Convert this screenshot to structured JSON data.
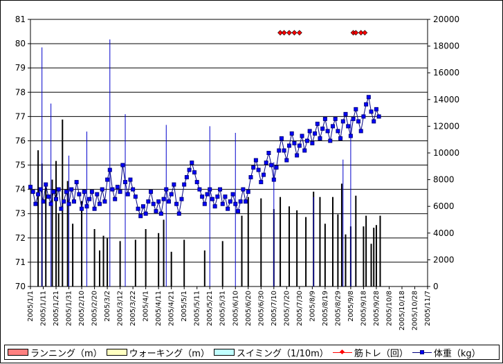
{
  "chart_data": {
    "type": "line",
    "title": "",
    "xlabel": "",
    "ylabel": "",
    "ylim": [
      70,
      81
    ],
    "y2lim": [
      0,
      20000
    ],
    "y_ticks": [
      "70",
      "71",
      "72",
      "73",
      "74",
      "75",
      "76",
      "77",
      "78",
      "79",
      "80",
      "81"
    ],
    "y2_ticks": [
      "0",
      "2000",
      "4000",
      "6000",
      "8000",
      "10000",
      "12000",
      "14000",
      "16000",
      "18000",
      "20000"
    ],
    "x_tick_labels": [
      "2005/1/1",
      "2005/1/11",
      "2005/1/21",
      "2005/1/31",
      "2005/2/10",
      "2005/2/20",
      "2005/3/2",
      "2005/3/12",
      "2005/3/22",
      "2005/4/1",
      "2005/4/11",
      "2005/4/21",
      "2005/5/1",
      "2005/5/11",
      "2005/5/21",
      "2005/5/31",
      "2005/6/10",
      "2005/6/20",
      "2005/6/30",
      "2005/7/10",
      "2005/7/20",
      "2005/7/30",
      "2005/8/9",
      "2005/8/19",
      "2005/8/29",
      "2005/9/8",
      "2005/9/18",
      "2005/9/28",
      "2005/10/8",
      "2005/10/18",
      "2005/10/28",
      "2005/11/7"
    ],
    "grid": true,
    "legend_position": "bottom",
    "colors": {
      "running": "#ff8080",
      "walking": "#ffffc0",
      "swimming": "#c0ffff",
      "strength": "#ff0000",
      "weight": "#000080",
      "weight_marker": "#0000ff"
    },
    "series": [
      {
        "name": "体重（kg）",
        "axis": "left",
        "kind": "line",
        "points": [
          [
            0,
            74.1
          ],
          [
            2,
            73.9
          ],
          [
            4,
            73.4
          ],
          [
            6,
            73.8
          ],
          [
            8,
            74.0
          ],
          [
            10,
            73.5
          ],
          [
            12,
            74.2
          ],
          [
            14,
            73.7
          ],
          [
            16,
            73.4
          ],
          [
            18,
            73.9
          ],
          [
            20,
            73.6
          ],
          [
            22,
            74.0
          ],
          [
            24,
            73.2
          ],
          [
            26,
            73.5
          ],
          [
            28,
            73.9
          ],
          [
            30,
            73.4
          ],
          [
            32,
            74.0
          ],
          [
            34,
            73.5
          ],
          [
            36,
            74.3
          ],
          [
            38,
            73.8
          ],
          [
            40,
            73.2
          ],
          [
            42,
            73.9
          ],
          [
            44,
            73.3
          ],
          [
            46,
            73.6
          ],
          [
            48,
            73.9
          ],
          [
            50,
            73.2
          ],
          [
            52,
            73.8
          ],
          [
            54,
            73.4
          ],
          [
            56,
            74.0
          ],
          [
            58,
            73.5
          ],
          [
            60,
            74.4
          ],
          [
            62,
            74.8
          ],
          [
            64,
            74.0
          ],
          [
            66,
            73.6
          ],
          [
            68,
            74.1
          ],
          [
            70,
            73.9
          ],
          [
            72,
            75.0
          ],
          [
            74,
            74.3
          ],
          [
            76,
            73.8
          ],
          [
            78,
            74.4
          ],
          [
            80,
            74.0
          ],
          [
            82,
            73.7
          ],
          [
            84,
            73.2
          ],
          [
            86,
            72.9
          ],
          [
            88,
            73.3
          ],
          [
            90,
            73.0
          ],
          [
            92,
            73.5
          ],
          [
            94,
            73.9
          ],
          [
            96,
            73.4
          ],
          [
            98,
            73.1
          ],
          [
            100,
            73.5
          ],
          [
            102,
            73.0
          ],
          [
            104,
            73.6
          ],
          [
            106,
            74.0
          ],
          [
            108,
            73.5
          ],
          [
            110,
            73.8
          ],
          [
            112,
            74.2
          ],
          [
            114,
            73.4
          ],
          [
            116,
            73.0
          ],
          [
            118,
            73.6
          ],
          [
            120,
            74.2
          ],
          [
            122,
            74.5
          ],
          [
            124,
            74.8
          ],
          [
            126,
            75.1
          ],
          [
            128,
            74.7
          ],
          [
            130,
            74.3
          ],
          [
            132,
            74.0
          ],
          [
            134,
            73.7
          ],
          [
            136,
            73.4
          ],
          [
            138,
            73.8
          ],
          [
            140,
            74.0
          ],
          [
            142,
            73.6
          ],
          [
            144,
            73.3
          ],
          [
            146,
            73.7
          ],
          [
            148,
            74.0
          ],
          [
            150,
            73.4
          ],
          [
            152,
            73.7
          ],
          [
            154,
            73.2
          ],
          [
            156,
            73.5
          ],
          [
            158,
            73.8
          ],
          [
            160,
            73.4
          ],
          [
            162,
            73.1
          ],
          [
            164,
            73.5
          ],
          [
            166,
            74.0
          ],
          [
            168,
            73.5
          ],
          [
            170,
            73.9
          ],
          [
            172,
            74.5
          ],
          [
            174,
            74.9
          ],
          [
            176,
            75.2
          ],
          [
            178,
            74.8
          ],
          [
            180,
            74.3
          ],
          [
            182,
            74.6
          ],
          [
            184,
            75.1
          ],
          [
            186,
            75.5
          ],
          [
            188,
            75.0
          ],
          [
            190,
            74.4
          ],
          [
            192,
            74.9
          ],
          [
            194,
            75.6
          ],
          [
            196,
            76.1
          ],
          [
            198,
            75.6
          ],
          [
            200,
            75.2
          ],
          [
            202,
            75.8
          ],
          [
            204,
            76.3
          ],
          [
            206,
            75.9
          ],
          [
            208,
            75.4
          ],
          [
            210,
            75.8
          ],
          [
            212,
            76.2
          ],
          [
            214,
            75.6
          ],
          [
            216,
            76.0
          ],
          [
            218,
            76.4
          ],
          [
            220,
            75.9
          ],
          [
            222,
            76.3
          ],
          [
            224,
            76.7
          ],
          [
            226,
            76.1
          ],
          [
            228,
            76.5
          ],
          [
            230,
            76.9
          ],
          [
            232,
            76.4
          ],
          [
            234,
            76.0
          ],
          [
            236,
            76.6
          ],
          [
            238,
            76.9
          ],
          [
            240,
            76.4
          ],
          [
            242,
            76.1
          ],
          [
            244,
            76.8
          ],
          [
            246,
            77.1
          ],
          [
            248,
            76.6
          ],
          [
            250,
            76.2
          ],
          [
            252,
            76.9
          ],
          [
            254,
            77.3
          ],
          [
            256,
            76.8
          ],
          [
            258,
            76.4
          ],
          [
            260,
            77.0
          ],
          [
            262,
            77.5
          ],
          [
            264,
            77.8
          ],
          [
            266,
            77.2
          ],
          [
            268,
            76.8
          ],
          [
            270,
            77.3
          ],
          [
            272,
            77.0
          ]
        ]
      },
      {
        "name": "筋トレ（回）",
        "axis": "right",
        "kind": "marker",
        "points": [
          [
            195,
            19000
          ],
          [
            198,
            19000
          ],
          [
            202,
            19000
          ],
          [
            206,
            19000
          ],
          [
            210,
            19000
          ],
          [
            252,
            19000
          ],
          [
            254,
            19000
          ],
          [
            258,
            19000
          ],
          [
            261,
            19000
          ]
        ]
      },
      {
        "name": "ランニング（m）",
        "axis": "right",
        "kind": "bar",
        "points": [
          [
            6,
            10200
          ],
          [
            9,
            9200
          ],
          [
            12,
            7700
          ],
          [
            17,
            8000
          ],
          [
            20,
            9400
          ],
          [
            22,
            5500
          ],
          [
            25,
            12500
          ],
          [
            29,
            7900
          ],
          [
            33,
            4700
          ],
          [
            40,
            6400
          ],
          [
            50,
            4300
          ],
          [
            54,
            2700
          ],
          [
            57,
            3800
          ],
          [
            60,
            3600
          ],
          [
            70,
            3400
          ],
          [
            82,
            3500
          ],
          [
            90,
            4300
          ],
          [
            100,
            4000
          ],
          [
            104,
            5000
          ],
          [
            110,
            2600
          ],
          [
            120,
            3500
          ],
          [
            136,
            2700
          ],
          [
            150,
            3400
          ],
          [
            165,
            5300
          ],
          [
            170,
            6700
          ],
          [
            180,
            6600
          ],
          [
            190,
            5800
          ],
          [
            195,
            6700
          ],
          [
            202,
            6000
          ],
          [
            208,
            5700
          ],
          [
            215,
            5200
          ],
          [
            221,
            7100
          ],
          [
            226,
            6700
          ],
          [
            230,
            4700
          ],
          [
            236,
            6700
          ],
          [
            240,
            5400
          ],
          [
            243,
            7700
          ],
          [
            246,
            3900
          ],
          [
            250,
            4500
          ],
          [
            254,
            6800
          ],
          [
            260,
            4500
          ],
          [
            262,
            5300
          ],
          [
            266,
            3200
          ],
          [
            268,
            4400
          ],
          [
            270,
            4600
          ],
          [
            273,
            5300
          ]
        ]
      },
      {
        "name": "ウォーキング（m）",
        "axis": "right",
        "kind": "bar",
        "points": []
      },
      {
        "name": "スイミング（1/10m）",
        "axis": "right",
        "kind": "bar",
        "points": []
      }
    ],
    "weight_spikes": [
      [
        9,
        17900
      ],
      [
        16,
        13700
      ],
      [
        30,
        9800
      ],
      [
        44,
        11600
      ],
      [
        62,
        18500
      ],
      [
        74,
        12900
      ],
      [
        106,
        12100
      ],
      [
        140,
        12000
      ],
      [
        160,
        11500
      ],
      [
        190,
        9300
      ],
      [
        221,
        6700
      ],
      [
        244,
        9500
      ],
      [
        250,
        12500
      ]
    ]
  },
  "legend": {
    "running": "ランニング（m）",
    "walking": "ウォーキング（m）",
    "swimming": "スイミング（1/10m）",
    "strength": "筋トレ（回）",
    "weight": "体重（kg）"
  }
}
